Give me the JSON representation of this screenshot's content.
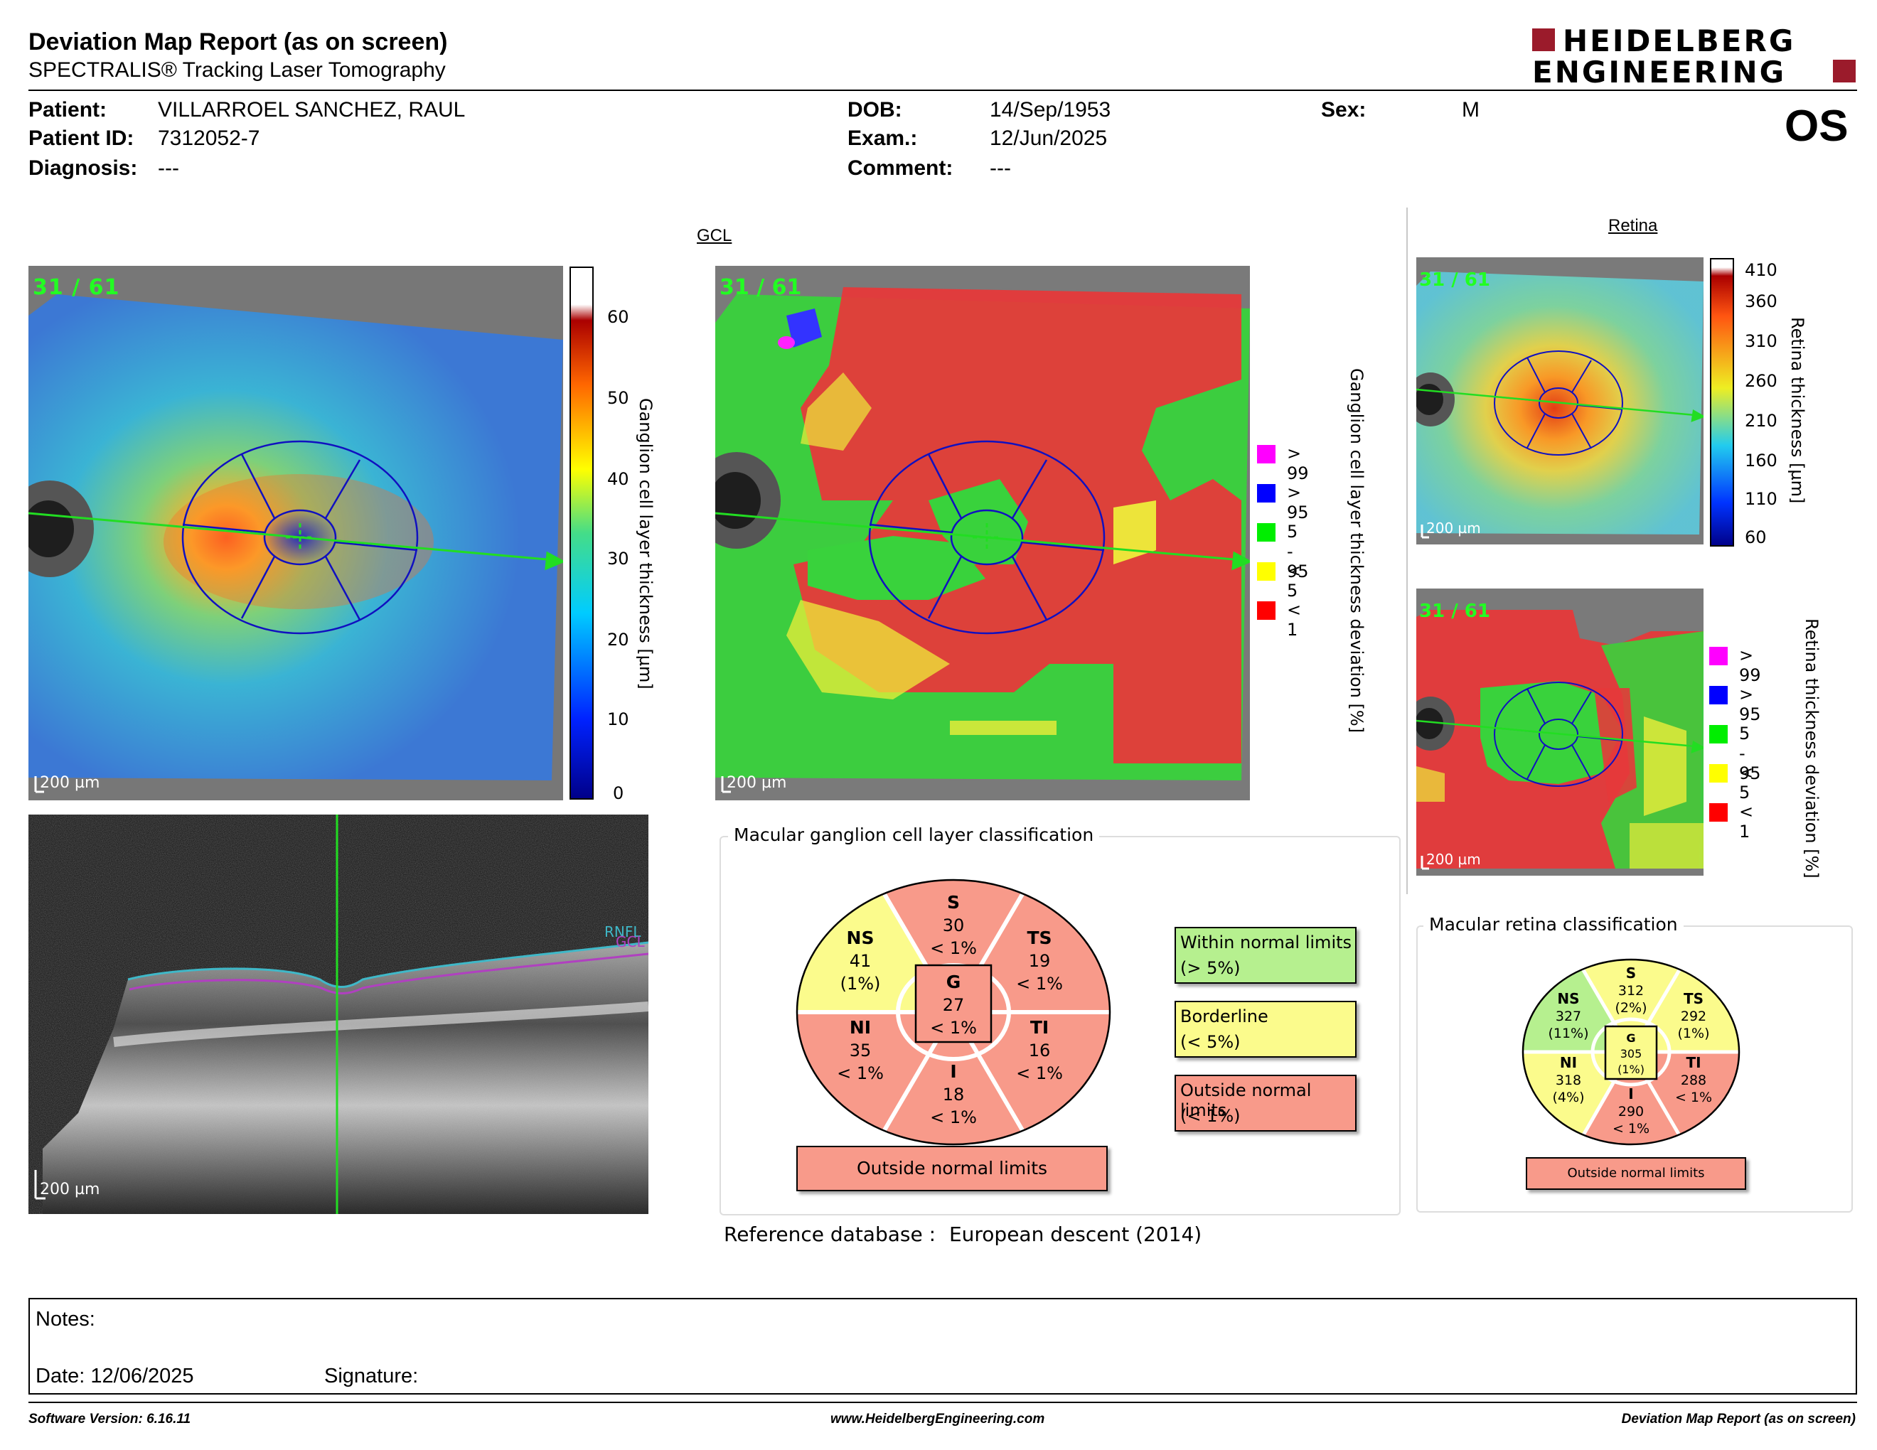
{
  "header": {
    "title": "Deviation Map Report (as on screen)",
    "subtitle": "SPECTRALIS® Tracking Laser Tomography",
    "logo_line1": "HEIDELBERG",
    "logo_line2": "ENGINEERING",
    "eye": "OS"
  },
  "patient": {
    "name_label": "Patient:",
    "name": "VILLARROEL SANCHEZ, RAUL",
    "id_label": "Patient ID:",
    "id": "7312052-7",
    "diagnosis_label": "Diagnosis:",
    "diagnosis": "---",
    "dob_label": "DOB:",
    "dob": "14/Sep/1953",
    "exam_label": "Exam.:",
    "exam": "12/Jun/2025",
    "comment_label": "Comment:",
    "comment": "---",
    "sex_label": "Sex:",
    "sex": "M"
  },
  "sections": {
    "gcl": "GCL",
    "retina": "Retina"
  },
  "images": {
    "frame_count": "31 / 61",
    "scale": "200 µm",
    "bscan_layers": [
      "RNFL",
      "GCL"
    ]
  },
  "colorbars": {
    "gcl": {
      "label": "Ganglion cell layer thickness [µm]",
      "ticks": [
        "60",
        "50",
        "40",
        "30",
        "20",
        "10",
        "0"
      ]
    },
    "retina": {
      "label": "Retina thickness [µm]",
      "ticks": [
        "410",
        "360",
        "310",
        "260",
        "210",
        "160",
        "110",
        "60"
      ]
    }
  },
  "deviation_legend": {
    "gcl_label": "Ganglion cell layer thickness deviation [%]",
    "retina_label": "Retina thickness deviation [%]",
    "items": [
      {
        "label": "> 99",
        "color": "#ff00ff"
      },
      {
        "label": "> 95",
        "color": "#0000ff"
      },
      {
        "label": "5 - 95",
        "color": "#00ee00"
      },
      {
        "label": "< 5",
        "color": "#ffff00"
      },
      {
        "label": "< 1",
        "color": "#ff0000"
      }
    ]
  },
  "gcl_classification": {
    "title": "Macular ganglion cell layer classification",
    "sectors": {
      "S": {
        "name": "S",
        "value": "30",
        "pct": "< 1%"
      },
      "TS": {
        "name": "TS",
        "value": "19",
        "pct": "< 1%"
      },
      "TI": {
        "name": "TI",
        "value": "16",
        "pct": "< 1%"
      },
      "I": {
        "name": "I",
        "value": "18",
        "pct": "< 1%"
      },
      "NI": {
        "name": "NI",
        "value": "35",
        "pct": "< 1%"
      },
      "NS": {
        "name": "NS",
        "value": "41",
        "pct": "(1%)"
      },
      "G": {
        "name": "G",
        "value": "27",
        "pct": "< 1%"
      }
    },
    "result": "Outside normal limits"
  },
  "legend_boxes": [
    {
      "line1": "Within normal limits",
      "line2": "(> 5%)",
      "color": "#b6f08f"
    },
    {
      "line1": "Borderline",
      "line2": "(< 5%)",
      "color": "#fbfb8c"
    },
    {
      "line1": "Outside normal limits",
      "line2": "(< 1%)",
      "color": "#f89a8a"
    }
  ],
  "retina_classification": {
    "title": "Macular retina classification",
    "sectors": {
      "S": {
        "name": "S",
        "value": "312",
        "pct": "(2%)"
      },
      "TS": {
        "name": "TS",
        "value": "292",
        "pct": "(1%)"
      },
      "TI": {
        "name": "TI",
        "value": "288",
        "pct": "< 1%"
      },
      "I": {
        "name": "I",
        "value": "290",
        "pct": "< 1%"
      },
      "NI": {
        "name": "NI",
        "value": "318",
        "pct": "(4%)"
      },
      "NS": {
        "name": "NS",
        "value": "327",
        "pct": "(11%)"
      },
      "G": {
        "name": "G",
        "value": "305",
        "pct": "(1%)"
      }
    },
    "result": "Outside normal limits"
  },
  "reference": {
    "label": "Reference database",
    "separator": ":",
    "value": "European descent (2014)"
  },
  "notes": {
    "label": "Notes:",
    "date_label": "Date:",
    "date": "12/06/2025",
    "signature_label": "Signature:"
  },
  "footer": {
    "software": "Software Version: 6.16.11",
    "url": "www.HeidelbergEngineering.com",
    "report": "Deviation Map Report (as on screen)"
  },
  "colors": {
    "red": "#f89a8a",
    "yellow": "#fbfb8c",
    "green": "#b6f08f",
    "logo": "#9b1b2b"
  }
}
